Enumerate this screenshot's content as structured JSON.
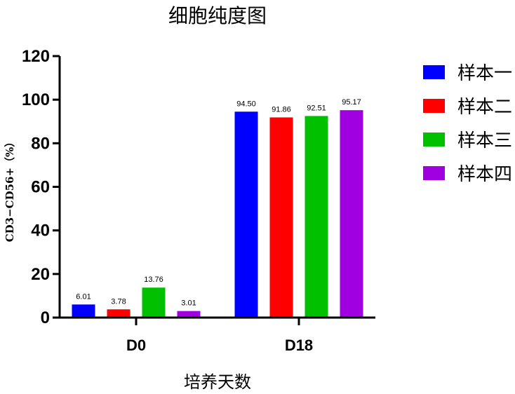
{
  "chart_data": {
    "type": "bar",
    "title": "细胞纯度图",
    "xlabel": "培养天数",
    "ylabel": "CD3−CD56+（%）",
    "categories": [
      "D0",
      "D18"
    ],
    "ylim": [
      0,
      120
    ],
    "yticks": [
      0,
      20,
      40,
      60,
      80,
      100,
      120
    ],
    "grid": false,
    "legend_position": "right",
    "series": [
      {
        "name": "样本一",
        "color": "#0000ff",
        "values": [
          6.01,
          94.5
        ],
        "labels": [
          "6.01",
          "94.50"
        ]
      },
      {
        "name": "样本二",
        "color": "#ff0000",
        "values": [
          3.78,
          91.86
        ],
        "labels": [
          "3.78",
          "91.86"
        ]
      },
      {
        "name": "样本三",
        "color": "#00c000",
        "values": [
          13.76,
          92.51
        ],
        "labels": [
          "13.76",
          "92.51"
        ]
      },
      {
        "name": "样本四",
        "color": "#a000e0",
        "values": [
          3.01,
          95.17
        ],
        "labels": [
          "3.01",
          "95.17"
        ]
      }
    ]
  }
}
